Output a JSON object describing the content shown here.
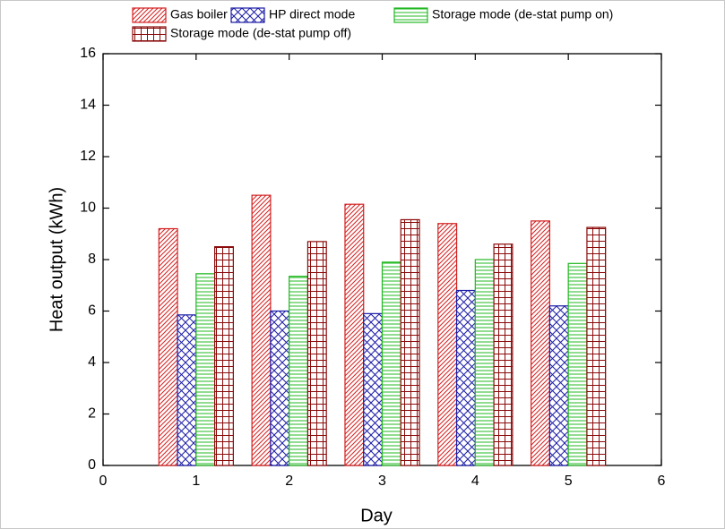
{
  "chart_data": {
    "type": "bar",
    "x_label": "Day",
    "y_label": "Heat output (kWh)",
    "x": [
      1,
      2,
      3,
      4,
      5
    ],
    "series": [
      {
        "name": "Gas boiler",
        "color": "#d42020",
        "pattern": "diagonal",
        "values": [
          9.2,
          10.5,
          10.15,
          9.4,
          9.5
        ]
      },
      {
        "name": "HP direct mode",
        "color": "#1c1ca8",
        "pattern": "cross",
        "values": [
          5.85,
          6.0,
          5.9,
          6.8,
          6.2
        ]
      },
      {
        "name": "Storage mode (de-stat pump on)",
        "color": "#22b822",
        "pattern": "horizontal",
        "values": [
          7.45,
          7.35,
          7.9,
          8.0,
          7.85
        ]
      },
      {
        "name": "Storage mode (de-stat pump off)",
        "color": "#8b0a0a",
        "pattern": "grid",
        "values": [
          8.5,
          8.7,
          9.55,
          8.6,
          9.25
        ]
      }
    ],
    "xlim": [
      0,
      6
    ],
    "xticks": [
      0,
      1,
      2,
      3,
      4,
      5,
      6
    ],
    "ylim": [
      0,
      16
    ],
    "yticks": [
      0,
      2,
      4,
      6,
      8,
      10,
      12,
      14,
      16
    ]
  }
}
